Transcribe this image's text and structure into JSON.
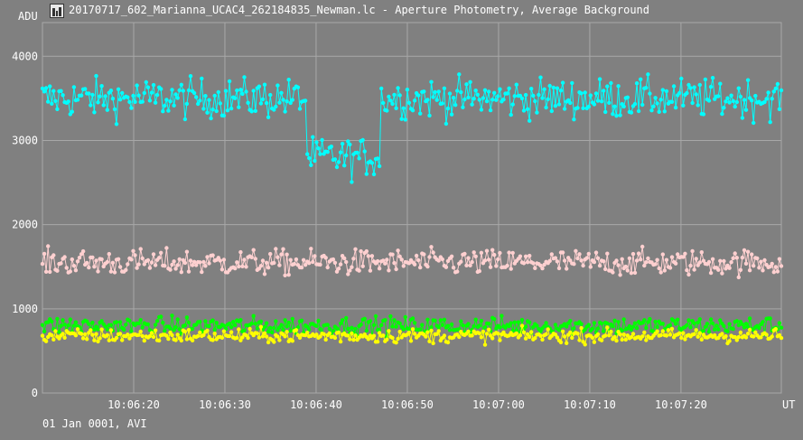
{
  "window": {
    "title": "20170717_602_Marianna_UCAC4_262184835_Newman.lc - Aperture Photometry, Average Background"
  },
  "footer": {
    "date_label": "01 Jan 0001, AVI"
  },
  "colors": {
    "background": "#808080",
    "grid": "#a8a8a8",
    "text": "#ffffff"
  },
  "chart_data": {
    "type": "line",
    "ylabel": "ADU",
    "xlabel": "UT",
    "ylim": [
      0,
      4000
    ],
    "y_ticks": [
      0,
      1000,
      2000,
      3000,
      4000
    ],
    "x_range_seconds": [
      "10:06:10",
      "10:07:31"
    ],
    "x_ticks": [
      "10:06:20",
      "10:06:30",
      "10:06:40",
      "10:06:50",
      "10:07:00",
      "10:07:10",
      "10:07:20"
    ],
    "grid": true,
    "series": [
      {
        "color": "#00ffff",
        "baseline": 3500,
        "scatter": 200,
        "eclipse": {
          "start": "10:06:39",
          "end": "10:06:47",
          "depth": 700
        }
      },
      {
        "color": "#ffd0d0",
        "baseline": 1550,
        "scatter": 130
      },
      {
        "color": "#00ff00",
        "baseline": 800,
        "scatter": 90
      },
      {
        "color": "#ffff00",
        "baseline": 680,
        "scatter": 70
      }
    ]
  }
}
